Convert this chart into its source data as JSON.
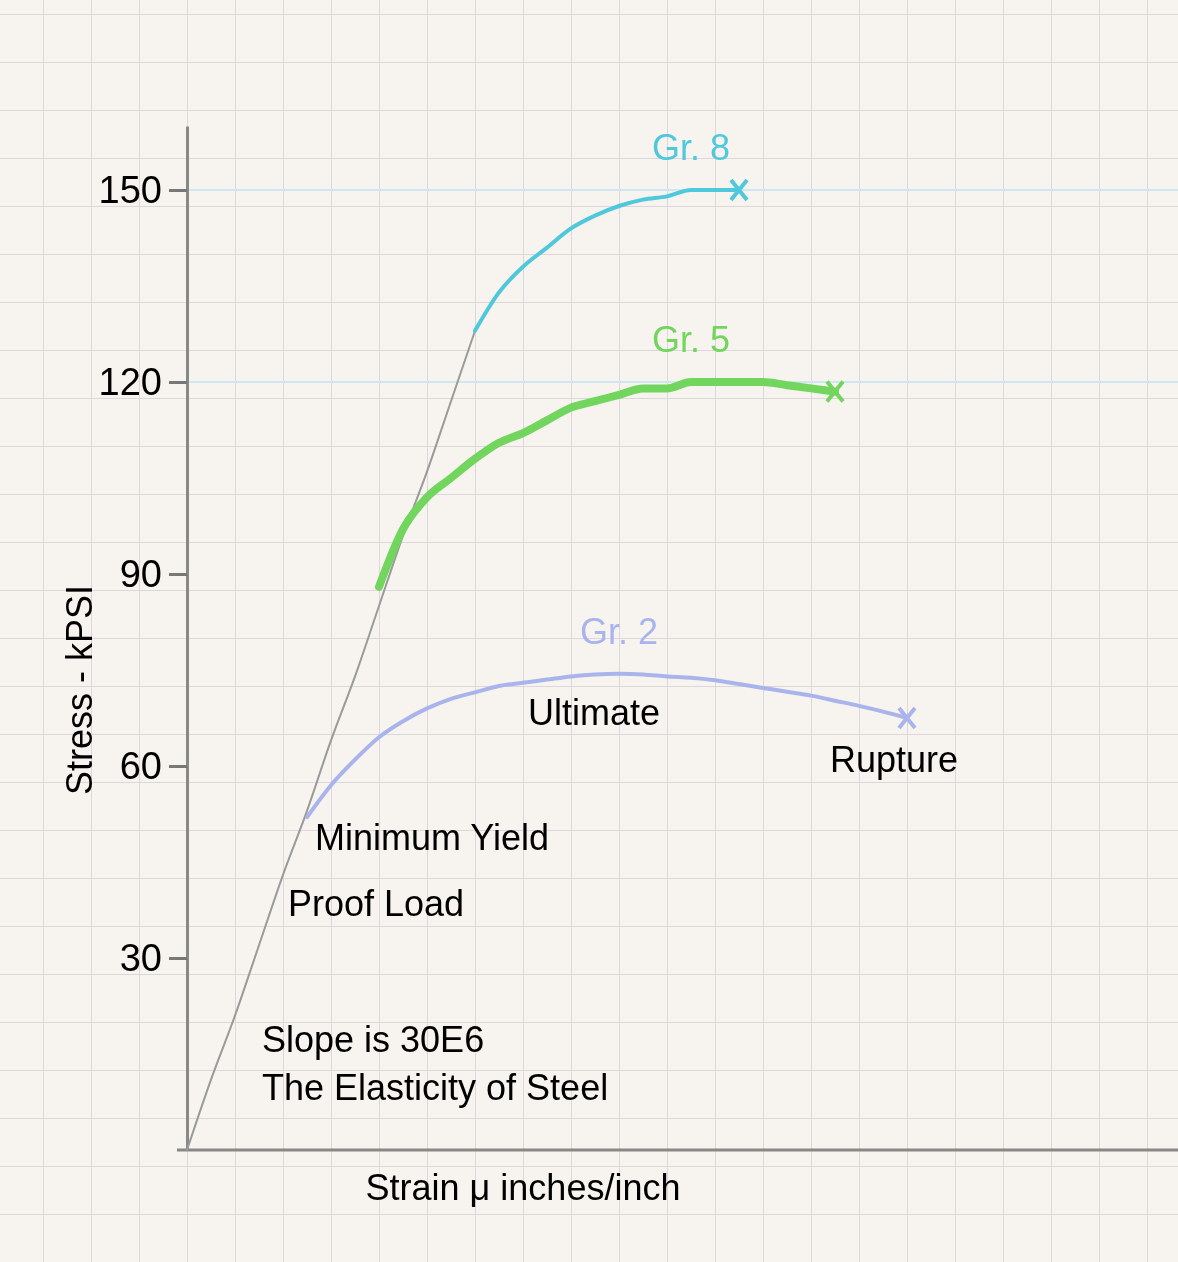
{
  "chart_data": {
    "type": "line",
    "xlabel": "Strain μ inches/inch",
    "ylabel": "Stress - kPSI",
    "categories": [
      null,
      null,
      null,
      null,
      null,
      null,
      null,
      null,
      null,
      null,
      null,
      null,
      null,
      null,
      null,
      null,
      null,
      null,
      null,
      null,
      null,
      null,
      null,
      null,
      null,
      null,
      null,
      null,
      null,
      null,
      null,
      null,
      null,
      null,
      null,
      null,
      null,
      null,
      null,
      null,
      null
    ],
    "ylim": [
      0,
      160
    ],
    "yticks": [
      30,
      60,
      90,
      120,
      150
    ],
    "tick_labels": "y",
    "series": [
      {
        "color": "#9a9a9a",
        "values": [
          0,
          11,
          21,
          32,
          43,
          53,
          64,
          74,
          85,
          96,
          106,
          117,
          128,
          null,
          null,
          null,
          null,
          null,
          null,
          null,
          null,
          null,
          null,
          null,
          null,
          null,
          null,
          null,
          null,
          null,
          null,
          null,
          null,
          null,
          null,
          null,
          null,
          null,
          null,
          null,
          null
        ]
      },
      {
        "name": "Gr. 8",
        "color": "#4fc8dc",
        "values": [
          null,
          null,
          null,
          null,
          null,
          null,
          null,
          null,
          null,
          null,
          null,
          null,
          128,
          134,
          138,
          141,
          144,
          146,
          147.5,
          148.5,
          149,
          150,
          150,
          150,
          null,
          null,
          null,
          null,
          null,
          null,
          null,
          null,
          null,
          null,
          null,
          null,
          null,
          null,
          null,
          null,
          null
        ]
      },
      {
        "name": "Gr. 5",
        "color": "#72d65e",
        "values": [
          null,
          null,
          null,
          null,
          null,
          null,
          null,
          null,
          88,
          97,
          102,
          105,
          108,
          110.5,
          112,
          114,
          116,
          117,
          118,
          119,
          119,
          120,
          120,
          120,
          120,
          119.5,
          119,
          118.5,
          null,
          null,
          null,
          null,
          null,
          null,
          null,
          null,
          null,
          null,
          null,
          null,
          null
        ]
      },
      {
        "name": "Gr. 2",
        "color": "#a9b4ec",
        "values": [
          null,
          null,
          null,
          null,
          null,
          52,
          57,
          61,
          64.5,
          67,
          69,
          70.5,
          71.5,
          72.5,
          73,
          73.5,
          74,
          74.3,
          74.4,
          74.3,
          74,
          73.8,
          73.4,
          72.8,
          72.2,
          71.6,
          71,
          70.2,
          69.4,
          68.5,
          67.5,
          null,
          null,
          null,
          null,
          null,
          null,
          null,
          null,
          null,
          null
        ]
      }
    ],
    "ref_lines": [
      {
        "axis": "y",
        "value": 150,
        "color": "#cfe8ee"
      },
      {
        "axis": "y",
        "value": 120,
        "color": "#cfe8ee"
      }
    ],
    "annotations": [
      "Ultimate",
      "Rupture",
      "Minimum Yield",
      "Proof Load",
      "Slope is 30E6\nThe Elasticity of Steel"
    ]
  }
}
